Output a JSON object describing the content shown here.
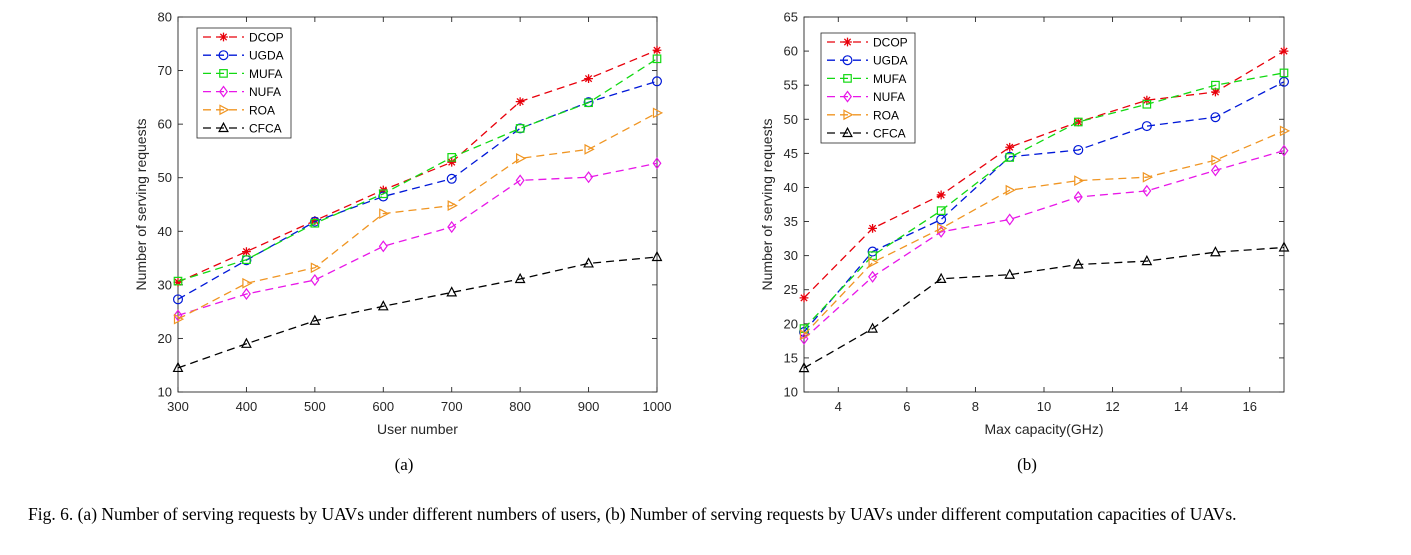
{
  "figure": {
    "caption": "Fig. 6.  (a) Number of serving requests by UAVs under different numbers of users, (b) Number of serving requests by UAVs under different computation capacities of UAVs."
  },
  "chart_data": [
    {
      "type": "line",
      "sublabel": "(a)",
      "xlabel": "User number",
      "ylabel": "Number of serving requests",
      "xlim": [
        300,
        1000
      ],
      "ylim": [
        10,
        80
      ],
      "xticks": [
        300,
        400,
        500,
        600,
        700,
        800,
        900,
        1000
      ],
      "yticks": [
        10,
        20,
        30,
        40,
        50,
        60,
        70,
        80
      ],
      "legend_position": "top-left",
      "x": [
        300,
        400,
        500,
        600,
        700,
        800,
        900,
        1000
      ],
      "series": [
        {
          "name": "DCOP",
          "color": "#e8000b",
          "marker": "asterisk",
          "values": [
            30.5,
            36.2,
            42.0,
            47.7,
            52.9,
            64.2,
            68.5,
            73.8
          ]
        },
        {
          "name": "UGDA",
          "color": "#0018d8",
          "marker": "circle",
          "values": [
            27.3,
            34.6,
            41.8,
            46.5,
            49.8,
            59.2,
            64.1,
            68.0
          ]
        },
        {
          "name": "MUFA",
          "color": "#12d912",
          "marker": "square",
          "values": [
            30.7,
            34.7,
            41.5,
            47.0,
            53.8,
            59.2,
            64.0,
            72.2
          ]
        },
        {
          "name": "NUFA",
          "color": "#e817e8",
          "marker": "diamond",
          "values": [
            24.3,
            28.3,
            30.9,
            37.2,
            40.8,
            49.5,
            50.1,
            52.7
          ]
        },
        {
          "name": "ROA",
          "color": "#f09522",
          "marker": "triangle-right",
          "values": [
            23.6,
            30.3,
            33.2,
            43.3,
            44.8,
            53.6,
            55.3,
            62.1
          ]
        },
        {
          "name": "CFCA",
          "color": "#000000",
          "marker": "triangle-up",
          "values": [
            14.5,
            19.0,
            23.3,
            26.0,
            28.6,
            31.1,
            34.0,
            35.2
          ]
        }
      ]
    },
    {
      "type": "line",
      "sublabel": "(b)",
      "xlabel": "Max capacity(GHz)",
      "ylabel": "Number of serving requests",
      "xlim": [
        3,
        17
      ],
      "ylim": [
        10,
        65
      ],
      "xticks": [
        4,
        6,
        8,
        10,
        12,
        14,
        16
      ],
      "yticks": [
        10,
        15,
        20,
        25,
        30,
        35,
        40,
        45,
        50,
        55,
        60,
        65
      ],
      "legend_position": "top-left",
      "x": [
        3,
        5,
        7,
        9,
        11,
        13,
        15,
        17
      ],
      "series": [
        {
          "name": "DCOP",
          "color": "#e8000b",
          "marker": "asterisk",
          "values": [
            23.8,
            34.0,
            38.9,
            45.9,
            49.6,
            52.8,
            54.0,
            60.0
          ]
        },
        {
          "name": "UGDA",
          "color": "#0018d8",
          "marker": "circle",
          "values": [
            18.8,
            30.6,
            35.3,
            44.5,
            45.5,
            49.0,
            50.3,
            55.5
          ]
        },
        {
          "name": "MUFA",
          "color": "#12d912",
          "marker": "square",
          "values": [
            19.3,
            30.0,
            36.6,
            44.4,
            49.6,
            52.2,
            55.0,
            56.8
          ]
        },
        {
          "name": "NUFA",
          "color": "#e817e8",
          "marker": "diamond",
          "values": [
            17.8,
            26.9,
            33.5,
            35.3,
            38.6,
            39.5,
            42.5,
            45.4
          ]
        },
        {
          "name": "ROA",
          "color": "#f09522",
          "marker": "triangle-right",
          "values": [
            18.4,
            29.0,
            34.0,
            39.6,
            41.0,
            41.5,
            44.0,
            48.3
          ]
        },
        {
          "name": "CFCA",
          "color": "#000000",
          "marker": "triangle-up",
          "values": [
            13.5,
            19.3,
            26.6,
            27.2,
            28.7,
            29.2,
            30.5,
            31.2
          ]
        }
      ]
    }
  ]
}
